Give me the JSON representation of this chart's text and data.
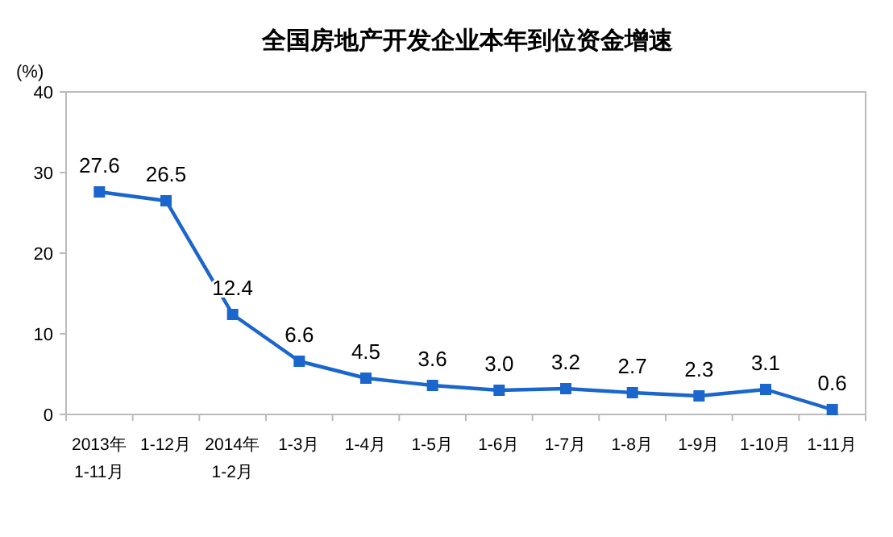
{
  "chart_data": {
    "type": "line",
    "title": "全国房地产开发企业本年到位资金增速",
    "ylabel": "(%)",
    "categories": [
      "2013年\n1-11月",
      "1-12月",
      "2014年\n1-2月",
      "1-3月",
      "1-4月",
      "1-5月",
      "1-6月",
      "1-7月",
      "1-8月",
      "1-9月",
      "1-10月",
      "1-11月"
    ],
    "series": [
      {
        "color": "#1a66cc",
        "values": [
          27.6,
          26.5,
          12.4,
          6.6,
          4.5,
          3.6,
          3.0,
          3.2,
          2.7,
          2.3,
          3.1,
          0.6
        ],
        "value_labels": [
          "27.6",
          "26.5",
          "12.4",
          "6.6",
          "4.5",
          "3.6",
          "3.0",
          "3.2",
          "2.7",
          "2.3",
          "3.1",
          "0.6"
        ]
      }
    ],
    "ylim": [
      0,
      40
    ],
    "yticks": [
      0,
      10,
      20,
      30,
      40
    ],
    "marker": "square",
    "line_style": "solid",
    "grid": false
  }
}
